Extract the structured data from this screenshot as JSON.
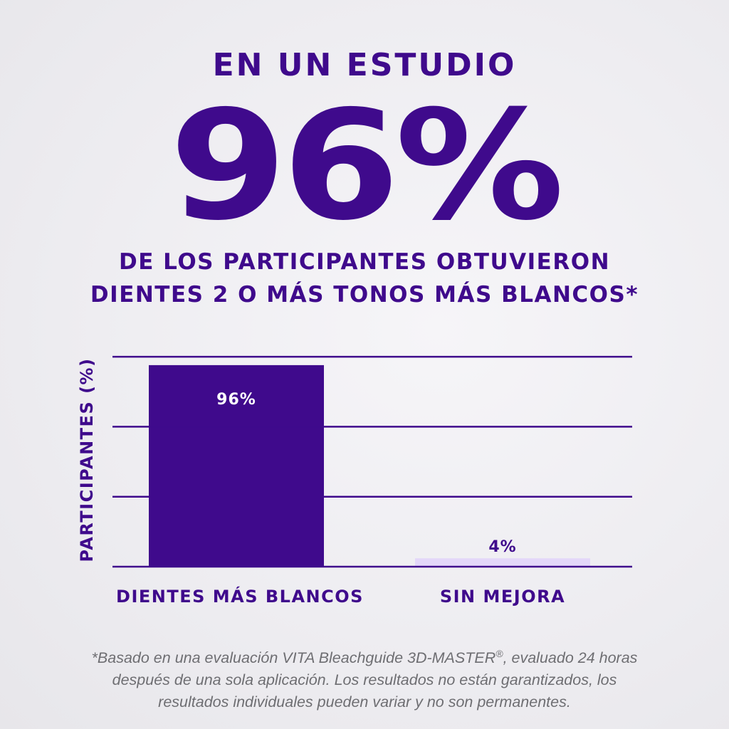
{
  "header": {
    "top_line": "EN UN ESTUDIO",
    "big_stat": "96%",
    "sub_line_1": "DE LOS PARTICIPANTES OBTUVIERON",
    "sub_line_2": "DIENTES 2 O MÁS TONOS MÁS BLANCOS*"
  },
  "chart_data": {
    "type": "bar",
    "categories": [
      "DIENTES MÁS BLANCOS",
      "SIN MEJORA"
    ],
    "values": [
      96,
      4
    ],
    "value_labels": [
      "96%",
      "4%"
    ],
    "ylabel": "PARTICIPANTES (%)",
    "xlabel": "",
    "ylim": [
      0,
      100
    ],
    "grid": true,
    "bar_colors": [
      "#3f0a8c",
      "#e3d7f9"
    ],
    "value_label_colors": [
      "#ffffff",
      "#3f0a8c"
    ]
  },
  "colors": {
    "primary": "#3f0a8c",
    "light_bar": "#e3d7f9",
    "footnote": "#6e6e72"
  },
  "footnote": {
    "line_1_before_mark": "*Basado en una evaluación VITA Bleachguide 3D-MASTER",
    "registered_mark": "®",
    "line_1_after_mark": ", evaluado 24 horas",
    "line_2": "después de una sola aplicación. Los resultados no están garantizados, los",
    "line_3": "resultados individuales pueden variar y no son permanentes."
  }
}
